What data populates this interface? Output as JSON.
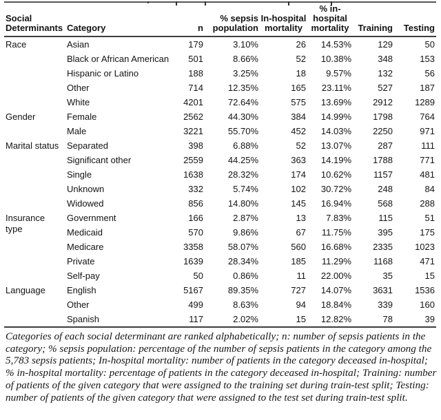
{
  "table": {
    "headers": {
      "social_determinants": "Social Determinants",
      "category": "Category",
      "n": "n",
      "pct_sepsis": "% sepsis population",
      "mortality": "In-hospital mortality",
      "pct_mortality": "% in-hospital mortality",
      "training": "Training",
      "testing": "Testing"
    },
    "groups": [
      {
        "determinant": "Race",
        "rows": [
          {
            "category": "Asian",
            "n": "179",
            "pct_sepsis": "3.10%",
            "mortality": "26",
            "pct_mortality": "14.53%",
            "training": "129",
            "testing": "50"
          },
          {
            "category": "Black or African American",
            "n": "501",
            "pct_sepsis": "8.66%",
            "mortality": "52",
            "pct_mortality": "10.38%",
            "training": "348",
            "testing": "153"
          },
          {
            "category": "Hispanic or Latino",
            "n": "188",
            "pct_sepsis": "3.25%",
            "mortality": "18",
            "pct_mortality": "9.57%",
            "training": "132",
            "testing": "56"
          },
          {
            "category": "Other",
            "n": "714",
            "pct_sepsis": "12.35%",
            "mortality": "165",
            "pct_mortality": "23.11%",
            "training": "527",
            "testing": "187"
          },
          {
            "category": "White",
            "n": "4201",
            "pct_sepsis": "72.64%",
            "mortality": "575",
            "pct_mortality": "13.69%",
            "training": "2912",
            "testing": "1289"
          }
        ]
      },
      {
        "determinant": "Gender",
        "rows": [
          {
            "category": "Female",
            "n": "2562",
            "pct_sepsis": "44.30%",
            "mortality": "384",
            "pct_mortality": "14.99%",
            "training": "1798",
            "testing": "764"
          },
          {
            "category": "Male",
            "n": "3221",
            "pct_sepsis": "55.70%",
            "mortality": "452",
            "pct_mortality": "14.03%",
            "training": "2250",
            "testing": "971"
          }
        ]
      },
      {
        "determinant": "Marital status",
        "rows": [
          {
            "category": "Separated",
            "n": "398",
            "pct_sepsis": "6.88%",
            "mortality": "52",
            "pct_mortality": "13.07%",
            "training": "287",
            "testing": "111"
          },
          {
            "category": "Significant other",
            "n": "2559",
            "pct_sepsis": "44.25%",
            "mortality": "363",
            "pct_mortality": "14.19%",
            "training": "1788",
            "testing": "771"
          },
          {
            "category": "Single",
            "n": "1638",
            "pct_sepsis": "28.32%",
            "mortality": "174",
            "pct_mortality": "10.62%",
            "training": "1157",
            "testing": "481"
          },
          {
            "category": "Unknown",
            "n": "332",
            "pct_sepsis": "5.74%",
            "mortality": "102",
            "pct_mortality": "30.72%",
            "training": "248",
            "testing": "84"
          },
          {
            "category": "Widowed",
            "n": "856",
            "pct_sepsis": "14.80%",
            "mortality": "145",
            "pct_mortality": "16.94%",
            "training": "568",
            "testing": "288"
          }
        ]
      },
      {
        "determinant": "Insurance type",
        "rows": [
          {
            "category": "Government",
            "n": "166",
            "pct_sepsis": "2.87%",
            "mortality": "13",
            "pct_mortality": "7.83%",
            "training": "115",
            "testing": "51"
          },
          {
            "category": "Medicaid",
            "n": "570",
            "pct_sepsis": "9.86%",
            "mortality": "67",
            "pct_mortality": "11.75%",
            "training": "395",
            "testing": "175"
          },
          {
            "category": "Medicare",
            "n": "3358",
            "pct_sepsis": "58.07%",
            "mortality": "560",
            "pct_mortality": "16.68%",
            "training": "2335",
            "testing": "1023"
          },
          {
            "category": "Private",
            "n": "1639",
            "pct_sepsis": "28.34%",
            "mortality": "185",
            "pct_mortality": "11.29%",
            "training": "1168",
            "testing": "471"
          },
          {
            "category": "Self-pay",
            "n": "50",
            "pct_sepsis": "0.86%",
            "mortality": "11",
            "pct_mortality": "22.00%",
            "training": "35",
            "testing": "15"
          }
        ]
      },
      {
        "determinant": "Language",
        "rows": [
          {
            "category": "English",
            "n": "5167",
            "pct_sepsis": "89.35%",
            "mortality": "727",
            "pct_mortality": "14.07%",
            "training": "3631",
            "testing": "1536"
          },
          {
            "category": "Other",
            "n": "499",
            "pct_sepsis": "8.63%",
            "mortality": "94",
            "pct_mortality": "18.84%",
            "training": "339",
            "testing": "160"
          },
          {
            "category": "Spanish",
            "n": "117",
            "pct_sepsis": "2.02%",
            "mortality": "15",
            "pct_mortality": "12.82%",
            "training": "78",
            "testing": "39"
          }
        ]
      }
    ]
  },
  "footnote": "Categories of each social determinant are ranked alphabetically; n: number of sepsis patients in the category; % sepsis population: percentage of the number of sepsis patients in the category among the 5,783 sepsis patients; In-hospital mortality: number of patients in the category deceased in-hospital; % in-hospital mortality: percentage of patients in the category deceased in-hospital; Training: number of patients of the given category that were assigned to the training set during train-test split; Testing: number of patients of the given category that were assigned to the test set during train-test split.",
  "colors": {
    "text": "#131313",
    "rule": "#3c3c3c",
    "background": "#ffffff"
  }
}
